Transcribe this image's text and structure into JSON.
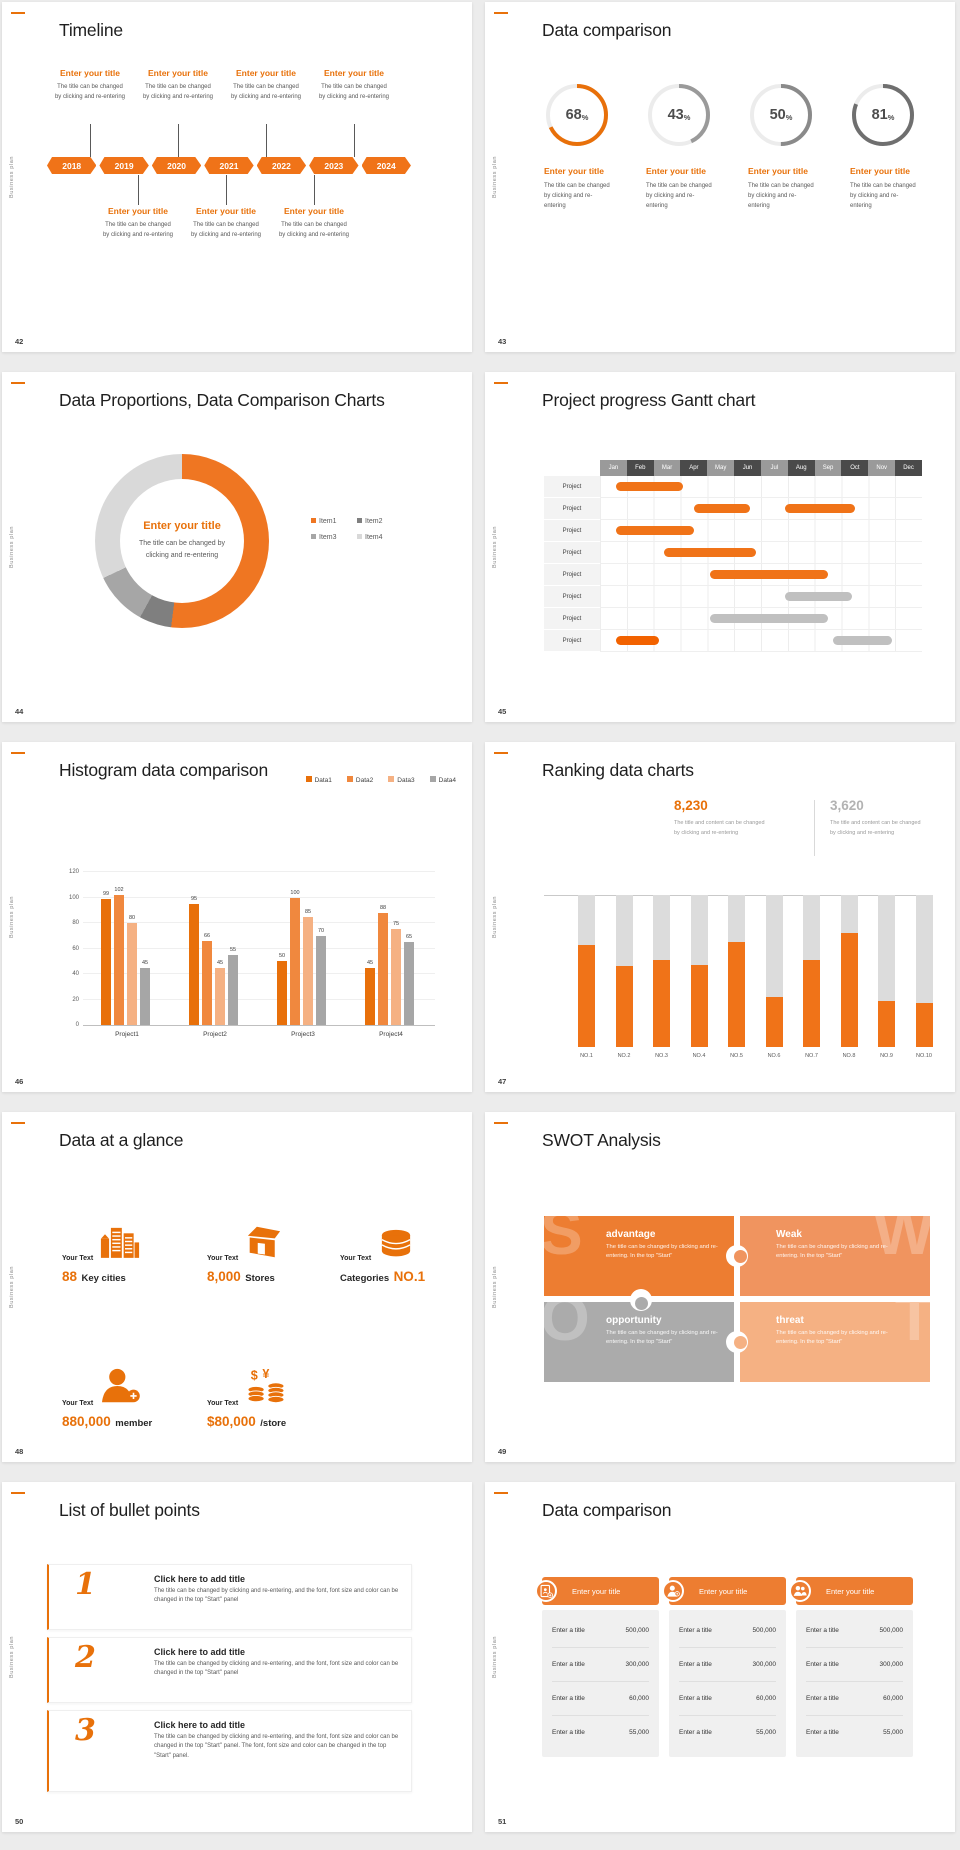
{
  "accent": "#E8710A",
  "common": {
    "vertical_label": "Business plan",
    "enter_title": "Enter your title",
    "body_l1": "The title can be changed",
    "body_l2": "by clicking and re-entering"
  },
  "slides": {
    "s42": {
      "number": "42",
      "title": "Timeline",
      "years": [
        "2018",
        "2019",
        "2020",
        "2021",
        "2022",
        "2023",
        "2024"
      ],
      "item_title": "Enter your title",
      "item_line1": "The title can be changed",
      "item_line2": "by clicking and re-entering",
      "top_items": 4,
      "bottom_items": 3
    },
    "s43": {
      "number": "43",
      "title": "Data comparison",
      "rings": [
        {
          "value": 68,
          "color": "#E8700A"
        },
        {
          "value": 43,
          "color": "#9a9a9a"
        },
        {
          "value": 50,
          "color": "#8a8a8a"
        },
        {
          "value": 81,
          "color": "#6f6f6f"
        }
      ],
      "item_title": "Enter your title",
      "item_line1": "The title can be changed",
      "item_line2": "by clicking and re-entering"
    },
    "s44": {
      "number": "44",
      "title": "Data Proportions, Data Comparison Charts",
      "center_title": "Enter your title",
      "center_body": "The title can be changed by clicking and re-entering",
      "segments": [
        {
          "label": "Item1",
          "pct": 52,
          "color": "#EF7622"
        },
        {
          "label": "Item2",
          "pct": 6,
          "color": "#7f7f7f"
        },
        {
          "label": "Item3",
          "pct": 10,
          "color": "#a6a6a6"
        },
        {
          "label": "Item4",
          "pct": 32,
          "color": "#d9d9d9"
        }
      ]
    },
    "s45": {
      "number": "45",
      "title": "Project progress Gantt chart",
      "months": [
        "Jan",
        "Feb",
        "Mar",
        "Apr",
        "May",
        "Jun",
        "Jul",
        "Aug",
        "Sep",
        "Oct",
        "Nov",
        "Dec"
      ],
      "row_label": "Project",
      "rows": [
        [
          {
            "s": 1.6,
            "e": 4.1,
            "c": "orange"
          }
        ],
        [
          {
            "s": 4.5,
            "e": 6.6,
            "c": "orange"
          },
          {
            "s": 7.9,
            "e": 10.5,
            "c": "orange"
          }
        ],
        [
          {
            "s": 1.6,
            "e": 4.5,
            "c": "orange"
          }
        ],
        [
          {
            "s": 3.4,
            "e": 6.8,
            "c": "orange"
          }
        ],
        [
          {
            "s": 5.1,
            "e": 9.5,
            "c": "orange"
          }
        ],
        [
          {
            "s": 7.9,
            "e": 10.4,
            "c": "gray"
          }
        ],
        [
          {
            "s": 5.1,
            "e": 9.5,
            "c": "gray"
          }
        ],
        [
          {
            "s": 1.6,
            "e": 3.2,
            "c": "orange2"
          },
          {
            "s": 9.7,
            "e": 11.9,
            "c": "gray"
          }
        ]
      ]
    },
    "s46": {
      "number": "46",
      "title": "Histogram data comparison",
      "categories": [
        "Project1",
        "Project2",
        "Project3",
        "Project4"
      ],
      "series": [
        {
          "name": "Data1",
          "color": "#E8700A",
          "values": [
            99,
            95,
            50,
            45
          ]
        },
        {
          "name": "Data2",
          "color": "#F0883E",
          "values": [
            102,
            66,
            100,
            88
          ]
        },
        {
          "name": "Data3",
          "color": "#F5B183",
          "values": [
            80,
            45,
            85,
            75
          ]
        },
        {
          "name": "Data4",
          "color": "#A6A6A6",
          "values": [
            45,
            55,
            70,
            65
          ]
        }
      ],
      "yticks": [
        0,
        20,
        40,
        60,
        80,
        100,
        120
      ],
      "ymax": 120
    },
    "s47": {
      "number": "47",
      "title": "Ranking data charts",
      "stat1": {
        "value": "8,230",
        "color": "#E8710A"
      },
      "stat2": {
        "value": "3,620",
        "color": "#b3b3b3"
      },
      "caption_l1": "The title and content can be changed",
      "caption_l2": "by clicking and re-entering",
      "categories": [
        "NO.1",
        "NO.2",
        "NO.3",
        "NO.4",
        "NO.5",
        "NO.6",
        "NO.7",
        "NO.8",
        "NO.9",
        "NO.10"
      ],
      "fills": [
        0.67,
        0.53,
        0.57,
        0.54,
        0.69,
        0.33,
        0.57,
        0.75,
        0.3,
        0.29
      ]
    },
    "s48": {
      "number": "48",
      "title": "Data at a glance",
      "items": [
        {
          "label": "Your Text",
          "value": "88",
          "unit": "Key cities",
          "icon": "city-icon",
          "value_first": true
        },
        {
          "label": "Your Text",
          "value": "8,000",
          "unit": "Stores",
          "icon": "store-icon",
          "value_first": true
        },
        {
          "label": "Your Text",
          "value": "NO.1",
          "unit": "Categories",
          "icon": "database-icon",
          "value_first": false
        },
        {
          "label": "Your Text",
          "value": "880,000",
          "unit": "member",
          "icon": "member-add-icon",
          "value_first": true
        },
        {
          "label": "Your Text",
          "value": "$80,000",
          "unit": "/store",
          "icon": "coins-icon",
          "value_first": true
        }
      ]
    },
    "s49": {
      "number": "49",
      "title": "SWOT Analysis",
      "body": "The title can be changed by clicking and re-entering. In the top \"Start\"",
      "pieces": [
        {
          "letter": "S",
          "title": "advantage",
          "color": "#ED7D31",
          "wm": "left"
        },
        {
          "letter": "W",
          "title": "Weak",
          "color": "#F0945F",
          "wm": "right"
        },
        {
          "letter": "O",
          "title": "opportunity",
          "color": "#ABABAB",
          "wm": "left"
        },
        {
          "letter": "T",
          "title": "threat",
          "color": "#F5B183",
          "wm": "right"
        }
      ]
    },
    "s50": {
      "number": "50",
      "title": "List of bullet points",
      "items": [
        {
          "num": "1",
          "title": "Click here to add title",
          "body": "The title can be changed by clicking and re-entering, and the font, font size and color can be changed in the top \"Start\" panel"
        },
        {
          "num": "2",
          "title": "Click here to add title",
          "body": "The title can be changed by clicking and re-entering, and the font, font size and color can be changed in the top \"Start\" panel"
        },
        {
          "num": "3",
          "title": "Click here to add title",
          "body": "The title can be changed by clicking and re-entering, and the font, font size and color can be changed in the top \"Start\" panel. The font, font size and color can be changed in the top \"Start\" panel."
        }
      ]
    },
    "s51": {
      "number": "51",
      "title": "Data comparison",
      "cards": [
        {
          "header": "Enter your title",
          "icon": "id-card-add-icon",
          "rows": [
            [
              "Enter a title",
              "500,000"
            ],
            [
              "Enter a title",
              "300,000"
            ],
            [
              "Enter a title",
              "60,000"
            ],
            [
              "Enter a title",
              "55,000"
            ]
          ]
        },
        {
          "header": "Enter your title",
          "icon": "person-add-icon",
          "rows": [
            [
              "Enter a title",
              "500,000"
            ],
            [
              "Enter a title",
              "300,000"
            ],
            [
              "Enter a title",
              "60,000"
            ],
            [
              "Enter a title",
              "55,000"
            ]
          ]
        },
        {
          "header": "Enter your title",
          "icon": "people-icon",
          "rows": [
            [
              "Enter a title",
              "500,000"
            ],
            [
              "Enter a title",
              "300,000"
            ],
            [
              "Enter a title",
              "60,000"
            ],
            [
              "Enter a title",
              "55,000"
            ]
          ]
        }
      ]
    }
  },
  "chart_data": [
    {
      "type": "pie",
      "slide": "44",
      "title": "Data Proportions, Data Comparison Charts",
      "labels": [
        "Item1",
        "Item2",
        "Item3",
        "Item4"
      ],
      "values": [
        52,
        6,
        10,
        32
      ],
      "colors": [
        "#EF7622",
        "#7f7f7f",
        "#a6a6a6",
        "#d9d9d9"
      ],
      "legend_position": "right"
    },
    {
      "type": "bar",
      "slide": "46",
      "title": "Histogram data comparison",
      "categories": [
        "Project1",
        "Project2",
        "Project3",
        "Project4"
      ],
      "series": [
        {
          "name": "Data1",
          "values": [
            99,
            95,
            50,
            45
          ]
        },
        {
          "name": "Data2",
          "values": [
            102,
            66,
            100,
            88
          ]
        },
        {
          "name": "Data3",
          "values": [
            80,
            45,
            85,
            75
          ]
        },
        {
          "name": "Data4",
          "values": [
            45,
            55,
            70,
            65
          ]
        }
      ],
      "ylim": [
        0,
        120
      ],
      "grid": true,
      "legend_position": "top-right"
    },
    {
      "type": "bar",
      "slide": "47",
      "title": "Ranking data charts",
      "categories": [
        "NO.1",
        "NO.2",
        "NO.3",
        "NO.4",
        "NO.5",
        "NO.6",
        "NO.7",
        "NO.8",
        "NO.9",
        "NO.10"
      ],
      "values": [
        0.67,
        0.53,
        0.57,
        0.54,
        0.69,
        0.33,
        0.57,
        0.75,
        0.3,
        0.29
      ],
      "note": "orange fill fraction of full gray column",
      "annotations": [
        "8,230",
        "3,620"
      ]
    },
    {
      "type": "bar",
      "slide": "43",
      "note": "circular progress rings",
      "values": [
        68,
        43,
        50,
        81
      ]
    },
    {
      "type": "table",
      "slide": "45",
      "title": "Project progress Gantt chart",
      "columns": [
        "Jan",
        "Feb",
        "Mar",
        "Apr",
        "May",
        "Jun",
        "Jul",
        "Aug",
        "Sep",
        "Oct",
        "Nov",
        "Dec"
      ],
      "rows": "8 Project rows, bars in month units",
      "bars": [
        [
          1.6,
          4.1
        ],
        [
          4.5,
          6.6
        ],
        [
          7.9,
          10.5
        ],
        [
          1.6,
          4.5
        ],
        [
          3.4,
          6.8
        ],
        [
          5.1,
          9.5
        ],
        [
          7.9,
          10.4
        ],
        [
          5.1,
          9.5
        ],
        [
          1.6,
          3.2
        ],
        [
          9.7,
          11.9
        ]
      ]
    }
  ]
}
